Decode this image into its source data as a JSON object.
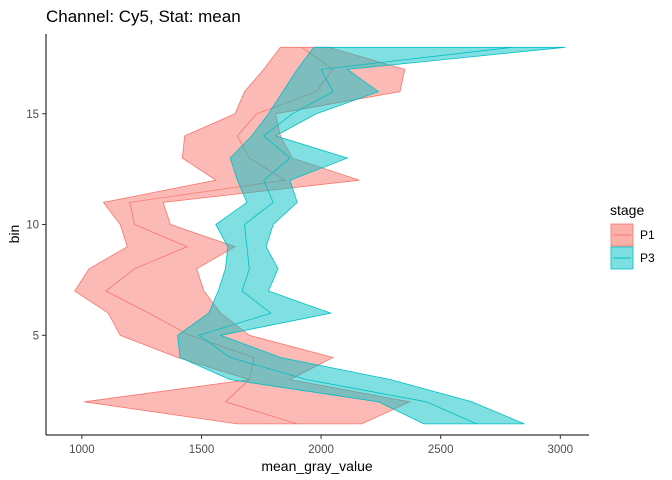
{
  "chart_data": {
    "type": "area",
    "title": "Channel: Cy5, Stat: mean",
    "xlabel": "mean_gray_value",
    "ylabel": "bin",
    "xlim": [
      850,
      3120
    ],
    "ylim": [
      0.5,
      18.6
    ],
    "xticks": [
      1000,
      1500,
      2000,
      2500,
      3000
    ],
    "yticks": [
      5,
      10,
      15
    ],
    "grid": false,
    "legend": {
      "title": "stage",
      "position": "right"
    },
    "series": [
      {
        "name": "P1",
        "color": "#F8766D",
        "fill": "#FBB0AB",
        "bins": [
          1,
          2,
          3,
          4,
          5,
          6,
          7,
          8,
          9,
          10,
          11,
          12,
          13,
          14,
          15,
          16,
          17,
          18
        ],
        "lower": [
          1650,
          1010,
          1700,
          1400,
          1160,
          1110,
          970,
          1030,
          1190,
          1160,
          1090,
          1560,
          1420,
          1430,
          1640,
          1680,
          1760,
          1830
        ],
        "upper": [
          2170,
          2370,
          1870,
          2050,
          1700,
          1580,
          1510,
          1480,
          1640,
          1370,
          1340,
          2160,
          1880,
          1830,
          1810,
          2330,
          2350,
          2030
        ],
        "mean": [
          1900,
          1600,
          1700,
          1720,
          1450,
          1280,
          1100,
          1220,
          1440,
          1220,
          1200,
          1850,
          1700,
          1650,
          1730,
          1980,
          2050,
          1920
        ]
      },
      {
        "name": "P3",
        "color": "#00BFC4",
        "fill": "#7EDFE2",
        "bins": [
          1,
          2,
          3,
          4,
          5,
          6,
          7,
          8,
          9,
          10,
          11,
          12,
          13,
          14,
          15,
          16,
          17,
          18
        ],
        "lower": [
          2430,
          2240,
          1620,
          1410,
          1400,
          1530,
          1570,
          1600,
          1610,
          1560,
          1690,
          1650,
          1620,
          1710,
          1780,
          1840,
          1900,
          1970
        ],
        "upper": [
          2850,
          2630,
          2290,
          1830,
          1580,
          2040,
          1780,
          1820,
          1770,
          1800,
          1900,
          1870,
          2110,
          1810,
          1980,
          2240,
          2110,
          3020
        ],
        "mean": [
          2650,
          2440,
          1940,
          1620,
          1490,
          1790,
          1670,
          1700,
          1690,
          1680,
          1800,
          1760,
          1870,
          1760,
          1880,
          2050,
          2000,
          2800
        ]
      }
    ]
  }
}
